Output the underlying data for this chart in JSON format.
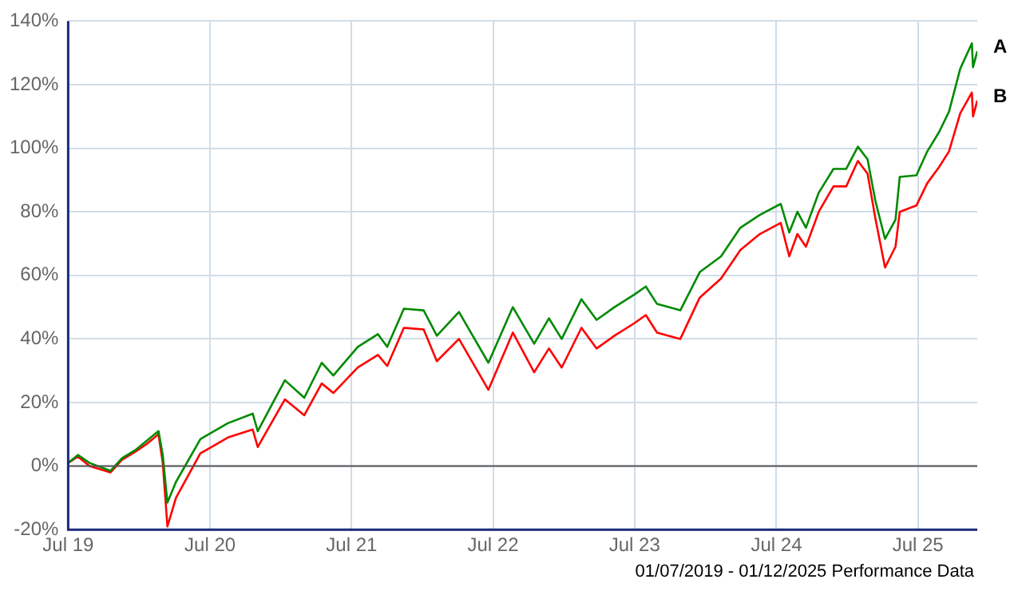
{
  "chart_data": {
    "type": "line",
    "x": [
      "2019-07-01",
      "2019-07-26",
      "2019-08-25",
      "2019-10-18",
      "2019-11-17",
      "2019-12-21",
      "2020-01-20",
      "2020-02-19",
      "2020-03-01",
      "2020-03-13",
      "2020-04-04",
      "2020-06-06",
      "2020-08-16",
      "2020-10-19",
      "2020-11-01",
      "2021-01-10",
      "2021-03-01",
      "2021-04-15",
      "2021-05-15",
      "2021-07-17",
      "2021-09-07",
      "2021-10-01",
      "2021-11-13",
      "2022-01-03",
      "2022-02-06",
      "2022-04-04",
      "2022-06-19",
      "2022-08-21",
      "2022-10-15",
      "2022-11-22",
      "2022-12-25",
      "2023-02-14",
      "2023-03-25",
      "2023-05-10",
      "2023-07-01",
      "2023-07-30",
      "2023-08-28",
      "2023-10-27",
      "2023-12-16",
      "2024-02-09",
      "2024-03-30",
      "2024-05-19",
      "2024-07-12",
      "2024-08-03",
      "2024-08-24",
      "2024-09-15",
      "2024-10-18",
      "2024-11-25",
      "2024-12-28",
      "2025-01-27",
      "2025-02-21",
      "2025-03-13",
      "2025-04-07",
      "2025-05-04",
      "2025-05-15",
      "2025-06-27",
      "2025-07-25",
      "2025-08-24",
      "2025-09-19",
      "2025-10-18",
      "2025-11-17",
      "2025-11-20",
      "2025-12-01"
    ],
    "series": [
      {
        "name": "A",
        "color": "#008a00",
        "values": [
          1,
          3.5,
          1,
          -1.5,
          2.5,
          5,
          8,
          11,
          3.5,
          -11.5,
          -5,
          8.5,
          13.5,
          16.5,
          11,
          27,
          21.5,
          32.5,
          28.5,
          37.5,
          41.5,
          37.5,
          49.5,
          49,
          41,
          48.5,
          32.5,
          50,
          38.5,
          46.5,
          40,
          52.5,
          46,
          50,
          54,
          56.5,
          51,
          49,
          61,
          66,
          75,
          79,
          82.5,
          73.5,
          80,
          75,
          86,
          93.5,
          93.5,
          100.5,
          96.5,
          83.5,
          71.5,
          77.5,
          91,
          91.5,
          99,
          105,
          111.5,
          125,
          133,
          125.5,
          130.5
        ]
      },
      {
        "name": "B",
        "color": "#ff0000",
        "values": [
          1,
          3,
          0,
          -2,
          2,
          4.5,
          7,
          10,
          1,
          -19,
          -10,
          4,
          9,
          11.5,
          6,
          21,
          16,
          26,
          23,
          31,
          35,
          31.5,
          43.5,
          43,
          33,
          40,
          24,
          42,
          29.5,
          37,
          31,
          43.5,
          37,
          41,
          45,
          47.5,
          42,
          40,
          53,
          59,
          68,
          73,
          76.5,
          66,
          73,
          69,
          80,
          88,
          88,
          96,
          92,
          78,
          62.5,
          69,
          80,
          82,
          89,
          94,
          99,
          111,
          117.5,
          110,
          115
        ]
      }
    ],
    "xlim": [
      "2019-07-01",
      "2025-12-01"
    ],
    "xticks": [
      {
        "value": "2019-07-01",
        "label": "Jul 19"
      },
      {
        "value": "2020-07-01",
        "label": "Jul 20"
      },
      {
        "value": "2021-07-01",
        "label": "Jul 21"
      },
      {
        "value": "2022-07-01",
        "label": "Jul 22"
      },
      {
        "value": "2023-07-01",
        "label": "Jul 23"
      },
      {
        "value": "2024-07-01",
        "label": "Jul 24"
      },
      {
        "value": "2025-07-01",
        "label": "Jul 25"
      }
    ],
    "ylim": [
      -20,
      140
    ],
    "yticks": [
      {
        "value": -20,
        "label": "-20%"
      },
      {
        "value": 0,
        "label": "0%"
      },
      {
        "value": 20,
        "label": "20%"
      },
      {
        "value": 40,
        "label": "40%"
      },
      {
        "value": 60,
        "label": "60%"
      },
      {
        "value": 80,
        "label": "80%"
      },
      {
        "value": 100,
        "label": "100%"
      },
      {
        "value": 120,
        "label": "120%"
      },
      {
        "value": 140,
        "label": "140%"
      }
    ],
    "ref_lines": [
      {
        "axis": "y",
        "value": 0,
        "color": "#555555"
      }
    ],
    "grid": true,
    "legend": false,
    "marker": "none",
    "line_style": "solid",
    "annotations": [
      "01/07/2019 - 01/12/2025 Performance Data"
    ]
  }
}
